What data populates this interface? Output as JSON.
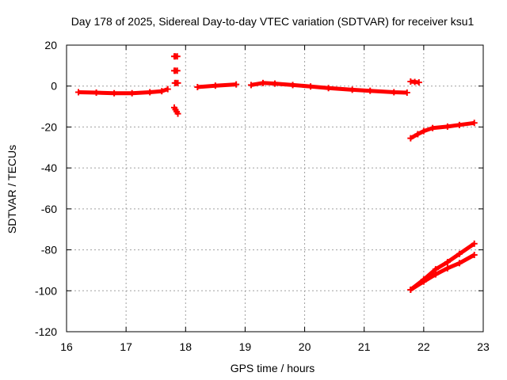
{
  "chart_data": {
    "type": "scatter",
    "title": "Day 178 of 2025, Sidereal Day-to-day VTEC variation (SDTVAR) for receiver ksu1",
    "xlabel": "GPS time / hours",
    "ylabel": "SDTVAR / TECUs",
    "xlim": [
      16,
      23
    ],
    "ylim": [
      -120,
      20
    ],
    "xticks": [
      "16",
      "17",
      "18",
      "19",
      "20",
      "21",
      "22",
      "23"
    ],
    "yticks": [
      "20",
      "0",
      "-20",
      "-40",
      "-60",
      "-80",
      "-100",
      "-120"
    ],
    "grid": true,
    "color": "#ff0000",
    "series": [
      {
        "segments": [
          [
            [
              16.2,
              -3.0
            ],
            [
              16.5,
              -3.2
            ],
            [
              16.8,
              -3.5
            ],
            [
              17.1,
              -3.5
            ],
            [
              17.4,
              -3.0
            ],
            [
              17.6,
              -2.5
            ],
            [
              17.7,
              -1.5
            ]
          ],
          [
            [
              17.81,
              14.5
            ],
            [
              17.83,
              14.5
            ],
            [
              17.86,
              14.5
            ]
          ],
          [
            [
              17.81,
              7.5
            ],
            [
              17.83,
              7.5
            ],
            [
              17.86,
              7.5
            ]
          ],
          [
            [
              17.82,
              1.5
            ],
            [
              17.84,
              1.5
            ],
            [
              17.87,
              1.5
            ]
          ],
          [
            [
              17.81,
              -10.5
            ],
            [
              17.83,
              -11.5
            ],
            [
              17.85,
              -12.5
            ],
            [
              17.87,
              -13.5
            ]
          ],
          [
            [
              18.2,
              -0.5
            ],
            [
              18.5,
              0.2
            ],
            [
              18.85,
              0.8
            ]
          ],
          [
            [
              19.1,
              0.5
            ],
            [
              19.3,
              1.5
            ],
            [
              19.5,
              1.2
            ],
            [
              19.8,
              0.5
            ],
            [
              20.1,
              -0.2
            ],
            [
              20.4,
              -1.0
            ],
            [
              20.8,
              -1.8
            ],
            [
              21.1,
              -2.3
            ],
            [
              21.5,
              -3.0
            ],
            [
              21.72,
              -3.2
            ]
          ],
          [
            [
              21.78,
              2.2
            ],
            [
              21.85,
              2.0
            ],
            [
              21.92,
              1.8
            ]
          ],
          [
            [
              21.78,
              -25.5
            ],
            [
              21.9,
              -23.5
            ],
            [
              22.0,
              -22.0
            ],
            [
              22.15,
              -20.5
            ],
            [
              22.4,
              -19.8
            ],
            [
              22.6,
              -19.0
            ],
            [
              22.85,
              -18.0
            ]
          ],
          [
            [
              21.78,
              -99.5
            ],
            [
              22.0,
              -94.5
            ],
            [
              22.2,
              -89.5
            ],
            [
              22.4,
              -86.0
            ],
            [
              22.6,
              -82.0
            ],
            [
              22.85,
              -77.0
            ]
          ],
          [
            [
              21.78,
              -99.5
            ],
            [
              22.0,
              -95.5
            ],
            [
              22.2,
              -92.0
            ],
            [
              22.4,
              -89.0
            ],
            [
              22.6,
              -86.5
            ],
            [
              22.85,
              -82.5
            ]
          ]
        ]
      }
    ]
  }
}
